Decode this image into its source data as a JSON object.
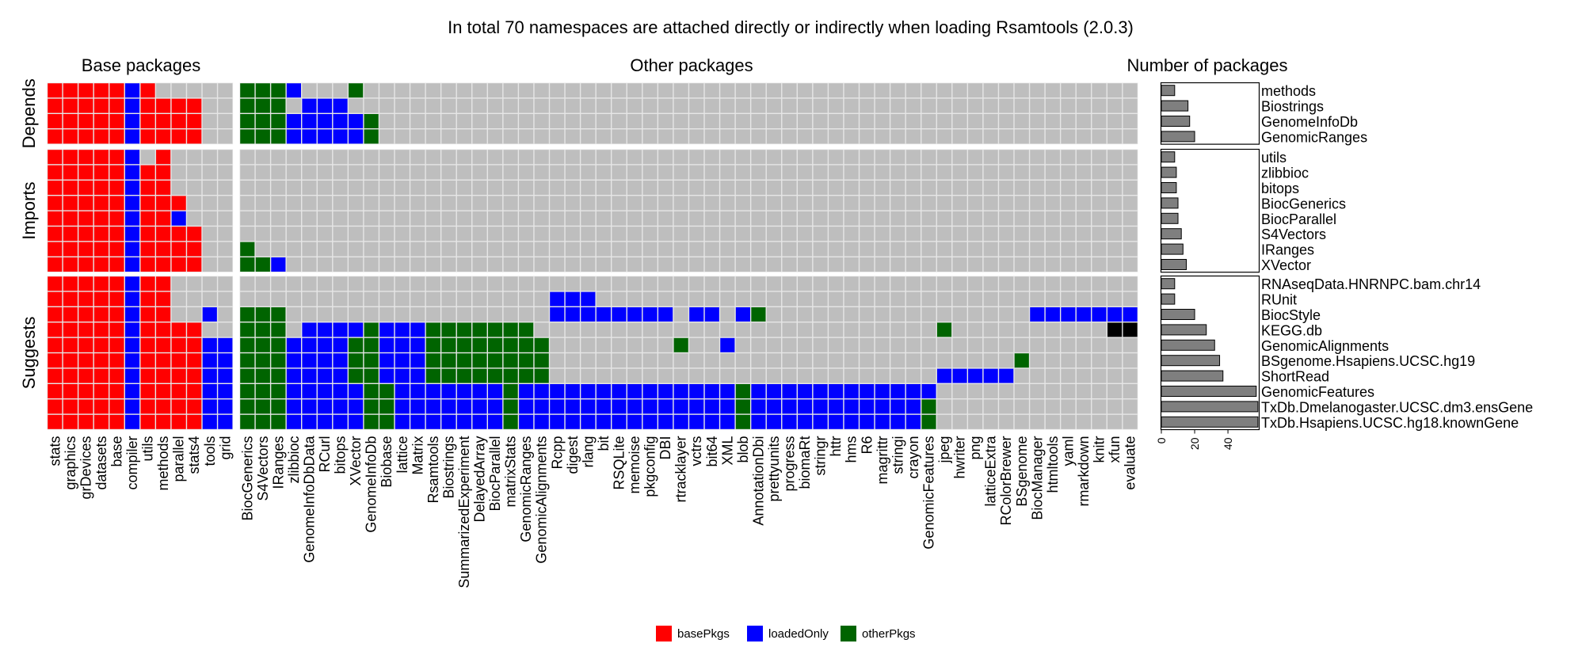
{
  "chart_data": {
    "type": "heatmap",
    "title": "In total 70 namespaces are attached directly or indirectly when loading Rsamtools (2.0.3)",
    "panel_titles": {
      "base": "Base packages",
      "other": "Other packages",
      "count": "Number of packages"
    },
    "colors": {
      "basePkgs": "#ff0000",
      "loadedOnly": "#0000ff",
      "otherPkgs": "#006400",
      "absent": "#bebebe",
      "bar": "#7f7f7f",
      "grid": "#e6e6e6"
    },
    "base_columns": [
      "stats",
      "graphics",
      "grDevices",
      "datasets",
      "base",
      "compiler",
      "utils",
      "methods",
      "parallel",
      "stats4",
      "tools",
      "grid"
    ],
    "other_columns": [
      "BiocGenerics",
      "S4Vectors",
      "IRanges",
      "zlibbioc",
      "GenomeInfoDbData",
      "RCurl",
      "bitops",
      "XVector",
      "GenomeInfoDb",
      "Biobase",
      "lattice",
      "Matrix",
      "Rsamtools",
      "Biostrings",
      "SummarizedExperiment",
      "DelayedArray",
      "BiocParallel",
      "matrixStats",
      "GenomicRanges",
      "GenomicAlignments",
      "Rcpp",
      "digest",
      "rlang",
      "bit",
      "RSQLite",
      "memoise",
      "pkgconfig",
      "DBI",
      "rtracklayer",
      "vctrs",
      "bit64",
      "XML",
      "blob",
      "AnnotationDbi",
      "prettyunits",
      "progress",
      "biomaRt",
      "stringr",
      "httr",
      "hms",
      "R6",
      "magrittr",
      "stringi",
      "crayon",
      "GenomicFeatures",
      "jpeg",
      "hwriter",
      "png",
      "latticeExtra",
      "RColorBrewer",
      "BSgenome",
      "BiocManager",
      "htmltools",
      "yaml",
      "rmarkdown",
      "knitr",
      "xfun",
      "evaluate"
    ],
    "groups": [
      {
        "label": "Depends",
        "rows": [
          {
            "name": "methods",
            "count": 8,
            "base": "BBBBBLB.....",
            "other": "GGGL...G.................................................."
          },
          {
            "name": "Biostrings",
            "count": 16,
            "base": "BBBBBLBBBB..",
            "other": "GGG.LLL..................................................."
          },
          {
            "name": "GenomeInfoDb",
            "count": 17,
            "base": "BBBBBLBBBB..",
            "other": "GGGLLLLLG................................................."
          },
          {
            "name": "GenomicRanges",
            "count": 20,
            "base": "BBBBBLBBBB..",
            "other": "GGGLLLLLG................................................."
          }
        ]
      },
      {
        "label": "Imports",
        "rows": [
          {
            "name": "utils",
            "count": 8,
            "base": "BBBBBL.B....",
            "other": ".........................................................."
          },
          {
            "name": "zlibbioc",
            "count": 9,
            "base": "BBBBBLBB....",
            "other": ".........................................................."
          },
          {
            "name": "bitops",
            "count": 9,
            "base": "BBBBBLBB....",
            "other": ".........................................................."
          },
          {
            "name": "BiocGenerics",
            "count": 10,
            "base": "BBBBBLBBB...",
            "other": ".........................................................."
          },
          {
            "name": "BiocParallel",
            "count": 10,
            "base": "BBBBBLBBL...",
            "other": ".........................................................."
          },
          {
            "name": "S4Vectors",
            "count": 12,
            "base": "BBBBBLBBBB..",
            "other": ".........................................................."
          },
          {
            "name": "IRanges",
            "count": 13,
            "base": "BBBBBLBBBB..",
            "other": "G........................................................."
          },
          {
            "name": "XVector",
            "count": 15,
            "base": "BBBBBLBBBB..",
            "other": "GGL......................................................."
          }
        ]
      },
      {
        "label": "Suggests",
        "rows": [
          {
            "name": "RNAseqData.HNRNPC.bam.chr14",
            "count": 8,
            "base": "BBBBBLBB....",
            "other": ".........................................................."
          },
          {
            "name": "RUnit",
            "count": 8,
            "base": "BBBBBLBB....",
            "other": "....................LLL..................................."
          },
          {
            "name": "BiocStyle",
            "count": 20,
            "base": "BBBBBLBB..L.",
            "other": "GGG.................LLLLLLLL.LL.LG.................LLLLLLL"
          },
          {
            "name": "KEGG.db",
            "count": 27,
            "base": "BBBBBLBBBB..",
            "other": "GGG.LLLLGLLLGGGGGGG..........................G.........."
          },
          {
            "name": "GenomicAlignments",
            "count": 32,
            "base": "BBBBBLBBBBLL",
            "other": "GGGLLLLGGLLLGGGGGGGG........G..L.........................."
          },
          {
            "name": "BSgenome.Hsapiens.UCSC.hg19",
            "count": 35,
            "base": "BBBBBLBBBBLL",
            "other": "GGGLLLLGGLLLGGGGGGGG..............................G......."
          },
          {
            "name": "ShortRead",
            "count": 37,
            "base": "BBBBBLBBBBLL",
            "other": "GGGLLLLGGLLLGGGGGGGG.........................LLLLL........"
          },
          {
            "name": "GenomicFeatures",
            "count": 57,
            "base": "BBBBBLBBBBLL",
            "other": "GGGLLLLLGGLLLLLLLGLLLLLLLLLLLLLLGLLLLLLLLLLLL............."
          },
          {
            "name": "TxDb.Dmelanogaster.UCSC.dm3.ensGene",
            "count": 58,
            "base": "BBBBBLBBBBLL",
            "other": "GGGLLLLLGGLLLLLLLGLLLLLLLLLLLLLLGLLLLLLLLLLLG............."
          },
          {
            "name": "TxDb.Hsapiens.UCSC.hg18.knownGene",
            "count": 58,
            "base": "BBBBBLBBBBLL",
            "other": "GGGLLLLLGGLLLLLLLGLLLLLLLLLLLLLLGLLLLLLLLLLLG............."
          }
        ]
      }
    ],
    "count_axis": {
      "ticks": [
        0,
        20,
        40
      ],
      "xlim": [
        0,
        59
      ]
    },
    "legend": {
      "items": [
        {
          "key": "B",
          "label": "basePkgs"
        },
        {
          "key": "L",
          "label": "loadedOnly"
        },
        {
          "key": "G",
          "label": "otherPkgs"
        }
      ],
      "position": "bottom"
    }
  }
}
